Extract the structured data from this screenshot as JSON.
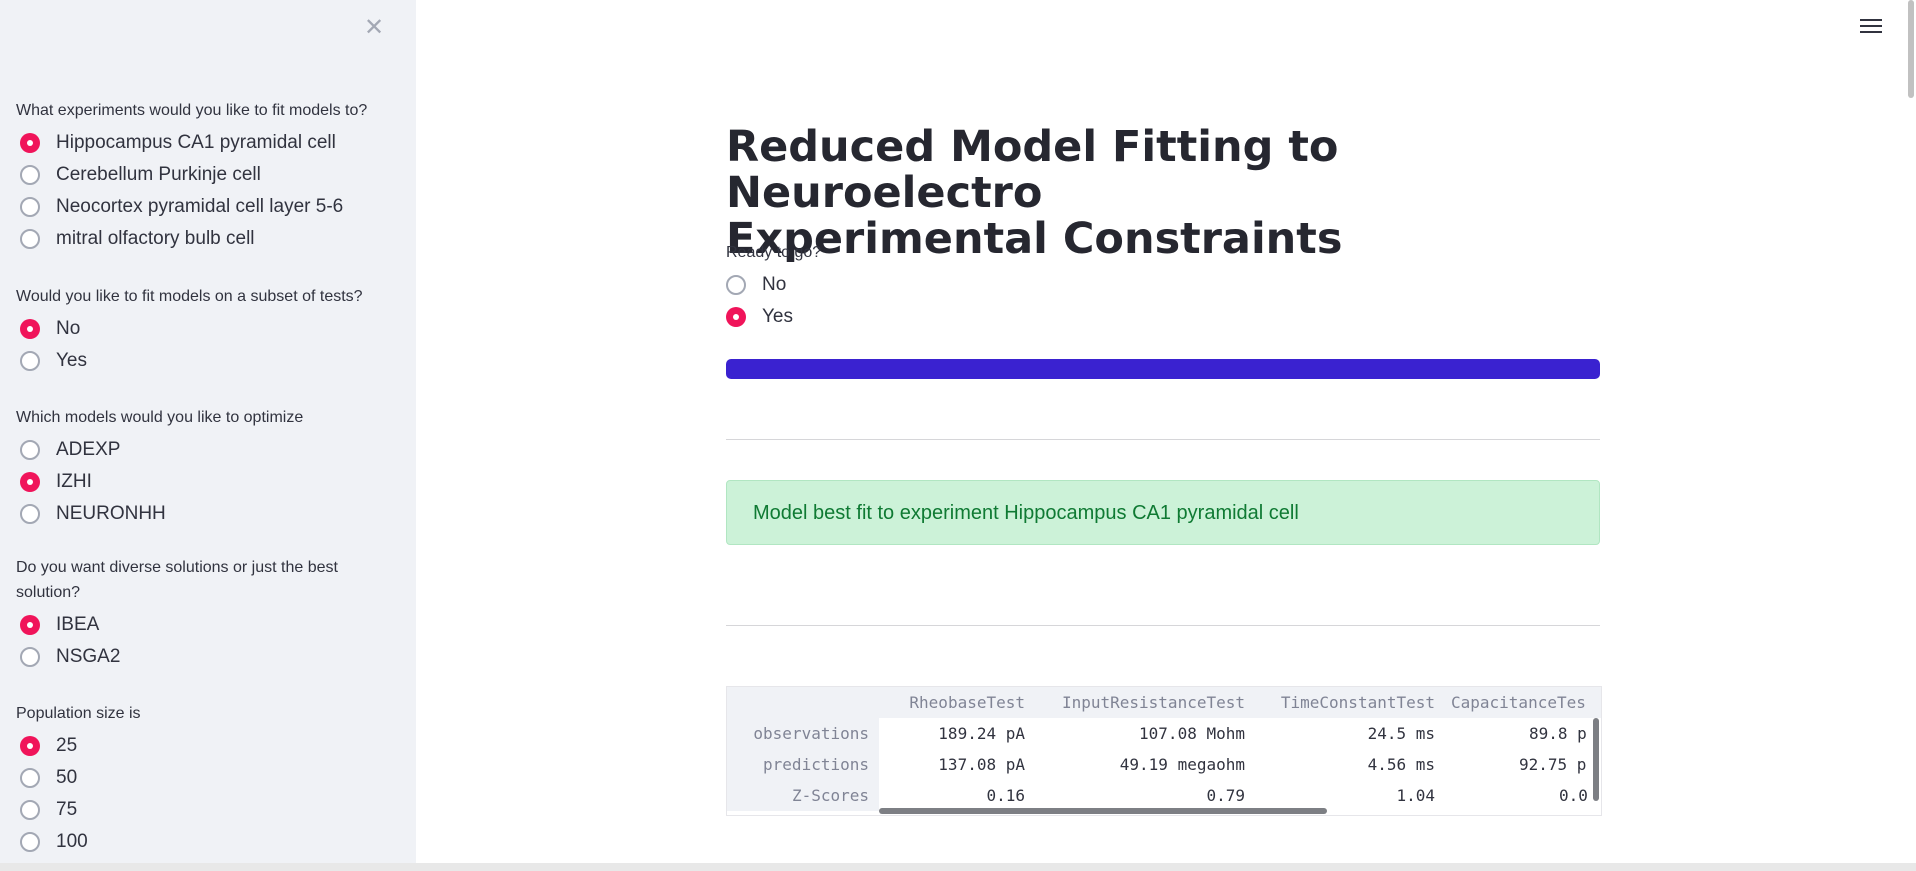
{
  "sidebar": {
    "groups": [
      {
        "question": "What experiments would you like to fit models to?",
        "options": [
          {
            "label": "Hippocampus CA1 pyramidal cell",
            "selected": true
          },
          {
            "label": "Cerebellum Purkinje cell",
            "selected": false
          },
          {
            "label": "Neocortex pyramidal cell layer 5-6",
            "selected": false
          },
          {
            "label": "mitral olfactory bulb cell",
            "selected": false
          }
        ]
      },
      {
        "question": "Would you like to fit models on a subset of tests?",
        "options": [
          {
            "label": "No",
            "selected": true
          },
          {
            "label": "Yes",
            "selected": false
          }
        ]
      },
      {
        "question": "Which models would you like to optimize",
        "options": [
          {
            "label": "ADEXP",
            "selected": false
          },
          {
            "label": "IZHI",
            "selected": true
          },
          {
            "label": "NEURONHH",
            "selected": false
          }
        ]
      },
      {
        "question": "Do you want diverse solutions or just the best solution?",
        "options": [
          {
            "label": "IBEA",
            "selected": true
          },
          {
            "label": "NSGA2",
            "selected": false
          }
        ]
      },
      {
        "question": "Population size is",
        "options": [
          {
            "label": "25",
            "selected": true
          },
          {
            "label": "50",
            "selected": false
          },
          {
            "label": "75",
            "selected": false
          },
          {
            "label": "100",
            "selected": false
          }
        ]
      }
    ]
  },
  "main": {
    "title_line1": "Reduced Model Fitting to Neuroelectro",
    "title_line2": "Experimental Constraints",
    "ready": {
      "question": "Ready to go?",
      "options": [
        {
          "label": "No",
          "selected": false
        },
        {
          "label": "Yes",
          "selected": true
        }
      ]
    },
    "progress": 1.0,
    "success_message": "Model best fit to experiment Hippocampus CA1 pyramidal cell",
    "table": {
      "columns": [
        "RheobaseTest",
        "InputResistanceTest",
        "TimeConstantTest",
        "CapacitanceTes"
      ],
      "rows": [
        {
          "index": "observations",
          "values": [
            "189.24 pA",
            "107.08 Mohm",
            "24.5 ms",
            "89.8 p"
          ]
        },
        {
          "index": "predictions",
          "values": [
            "137.08 pA",
            "49.19 megaohm",
            "4.56 ms",
            "92.75 p"
          ]
        },
        {
          "index": "Z-Scores",
          "values": [
            "0.16",
            "0.79",
            "1.04",
            "0.0"
          ]
        }
      ]
    }
  },
  "colors": {
    "accent": "#f0145a",
    "progress": "#3a22d0",
    "success_bg": "#ccf2d8",
    "success_text": "#0f7a33",
    "sidebar_bg": "#f0f2f6"
  },
  "icons": {
    "close": "close-icon",
    "menu": "hamburger-menu-icon"
  }
}
